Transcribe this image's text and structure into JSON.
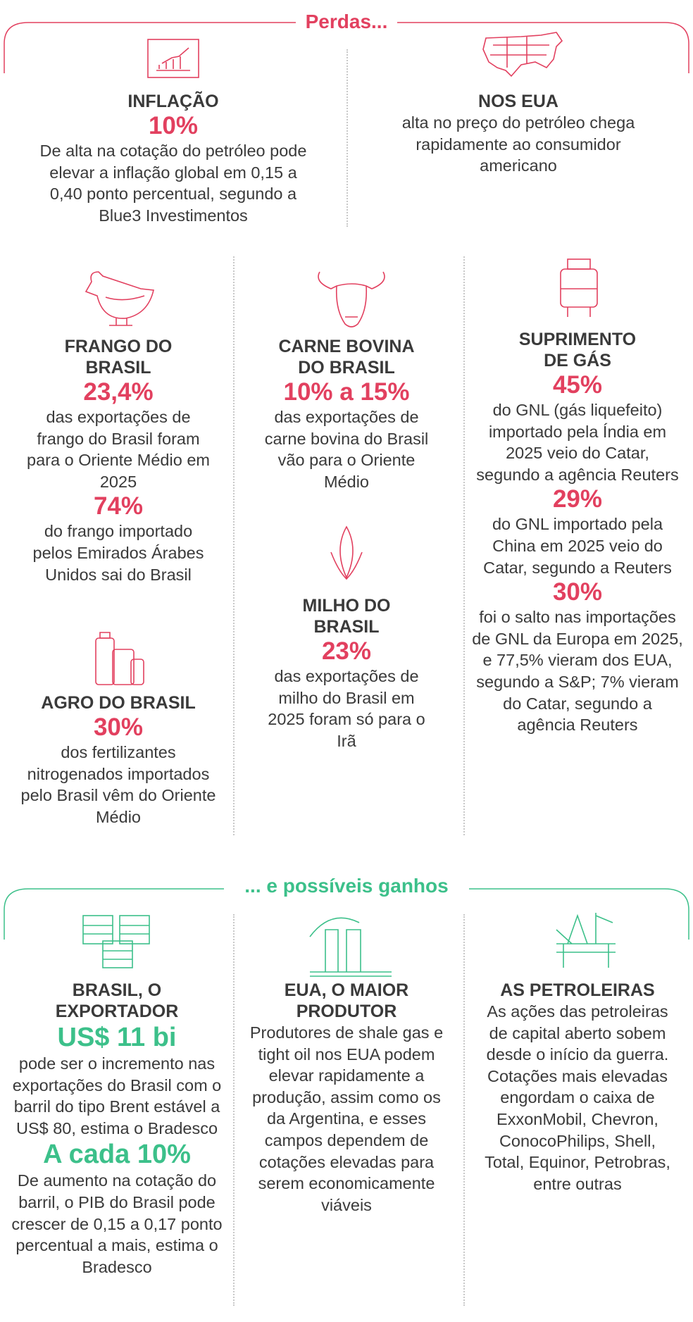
{
  "losses": {
    "title": "Perdas...",
    "blocks": [
      {
        "heading": "INFLAÇÃO",
        "items": [
          {
            "value": "10%",
            "text": "De alta na cotação do petróleo pode elevar a inflação global em 0,15 a 0,40 ponto percentual, segundo a Blue3 Investimentos"
          }
        ]
      },
      {
        "heading": "NOS EUA",
        "items": [
          {
            "text": "alta no preço do petróleo chega rapidamente ao consumidor americano"
          }
        ]
      },
      {
        "heading": "FRANGO DO BRASIL",
        "items": [
          {
            "value": "23,4%",
            "text": "das exportações de frango do Brasil foram para o Oriente Médio em 2025"
          },
          {
            "value": "74%",
            "text": "do frango importado pelos Emirados Árabes Unidos sai do Brasil"
          }
        ]
      },
      {
        "heading": "CARNE BOVINA DO BRASIL",
        "items": [
          {
            "value": "10% a 15%",
            "text": "das exportações de carne bovina do Brasil vão para o Oriente Médio"
          }
        ]
      },
      {
        "heading": "SUPRIMENTO DE GÁS",
        "items": [
          {
            "value": "45%",
            "text": "do GNL (gás liquefeito) importado pela Índia em 2025 veio do Catar, segundo a agência Reuters"
          },
          {
            "value": "29%",
            "text": "do GNL importado pela China em 2025 veio do Catar, segundo a Reuters"
          },
          {
            "value": "30%",
            "text": "foi o salto nas importações de GNL da Europa em 2025, e 77,5% vieram dos EUA, segundo a S&P; 7% vieram do Catar, segundo a agência Reuters"
          }
        ]
      },
      {
        "heading": "AGRO DO BRASIL",
        "items": [
          {
            "value": "30%",
            "text": "dos fertilizantes nitrogenados importados pelo Brasil vêm do Oriente Médio"
          }
        ]
      },
      {
        "heading": "MILHO DO BRASIL",
        "items": [
          {
            "value": "23%",
            "text": "das exportações de milho do Brasil em 2025 foram só para o Irã"
          }
        ]
      }
    ]
  },
  "gains": {
    "title": "... e possíveis ganhos",
    "blocks": [
      {
        "heading": "BRASIL, O EXPORTADOR",
        "items": [
          {
            "value": "US$ 11 bi",
            "text": "pode ser o incremento nas exportações do Brasil com o barril do tipo Brent estável a US$ 80, estima o Bradesco"
          },
          {
            "value": "A cada 10%",
            "text": "De aumento na cotação do barril, o PIB do Brasil pode crescer de 0,15 a 0,17 ponto percentual a mais, estima o Bradesco"
          }
        ]
      },
      {
        "heading": "EUA, O MAIOR PRODUTOR",
        "items": [
          {
            "text": "Produtores de shale gas e tight oil nos EUA podem elevar rapidamente a produção, assim como os da Argentina, e esses campos dependem de cotações elevadas para serem economicamente viáveis"
          }
        ]
      },
      {
        "heading": "AS PETROLEIRAS",
        "items": [
          {
            "text": "As ações das petroleiras de capital aberto sobem desde o início da guerra. Cotações mais elevadas engordam o caixa de ExxonMobil, Chevron, ConocoPhilips, Shell, Total, Equinor, Petrobras, entre outras"
          }
        ]
      }
    ]
  }
}
